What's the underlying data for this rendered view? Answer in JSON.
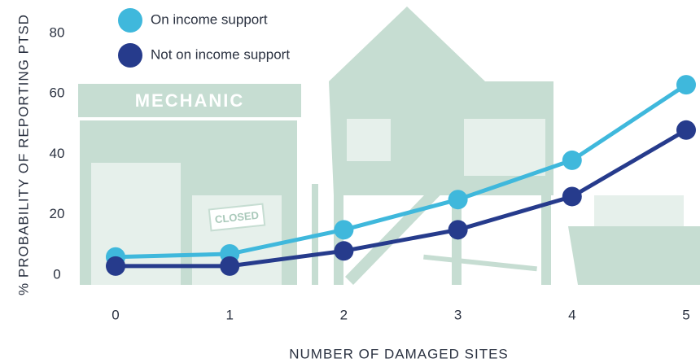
{
  "chart_data": {
    "type": "line",
    "x": [
      0,
      1,
      2,
      3,
      4,
      5
    ],
    "xlim": [
      0,
      5
    ],
    "xticks": [
      0,
      1,
      2,
      3,
      4,
      5
    ],
    "ylim": [
      0,
      80
    ],
    "yticks": [
      0,
      20,
      40,
      60,
      80
    ],
    "x_label": "NUMBER OF DAMAGED SITES",
    "y_label": "% PROBABILITY OF REPORTING PTSD",
    "legend": "top-left",
    "annotations": [
      "MECHANIC",
      "CLOSED"
    ],
    "series": [
      {
        "name": "On income support",
        "color": "#3fb8dc",
        "values": [
          6,
          7,
          15,
          25,
          38,
          63
        ]
      },
      {
        "name": "Not on income support",
        "color": "#263b8c",
        "values": [
          3,
          3,
          8,
          15,
          26,
          48
        ]
      }
    ]
  }
}
